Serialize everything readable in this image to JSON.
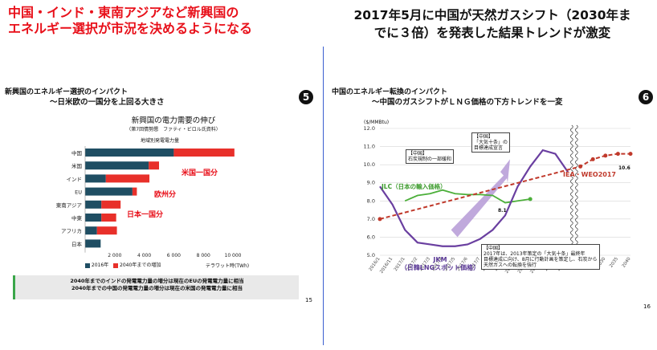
{
  "left": {
    "headline_line1": "中国・インド・東南アジアなど新興国の",
    "headline_line2": "エネルギー選択が市況を決めるようになる",
    "slide_title": "新興国のエネルギー選択のインパクト",
    "slide_subtitle": "～日米欧の一国分を上回る大きさ",
    "badge": "5",
    "chart_heading": "新興国の電力需要の伸び",
    "chart_source": "（第7回情勢懇　ファティ・ビロル氏資料）",
    "chart_axis_title": "地域別発電電力量",
    "annotations": [
      "米国一国分",
      "欧州分",
      "日本一国分"
    ],
    "unit_label": "テラワット時(TWh)",
    "legend": [
      "2016年",
      "2040年までの増加"
    ],
    "note_line1": "2040年までのインドの発電電力量の増分は現在のEUの発電電力量に相当",
    "note_line2": "2040年までの中国の発電電力量の増分は現在の米国の発電電力量に相当",
    "page_number": "15"
  },
  "right": {
    "headline_line1": "2017年5月に中国が天然ガスシフト（2030年ま",
    "headline_line2": "でに３倍）を発表した結果トレンドが激変",
    "slide_title": "中国のエネルギー転換のインパクト",
    "slide_subtitle": "～中国のガスシフトがＬＮＧ価格の下方トレンドを一変",
    "badge": "6",
    "unit_label": "($/MMBtu)",
    "callout_top_line1": "【中国】",
    "callout_top_line2": "「大気十条」の",
    "callout_top_line3": "目標達成宣言",
    "callout_coal_line1": "【中国】",
    "callout_coal_line2": "石炭規制の一部緩和",
    "callout_bottom_line1": "【中国】",
    "callout_bottom_line2": "2017年は、2013年策定の「大気十条」最終年",
    "callout_bottom_line3": "目標達成に向け、8月に行動計画を策定し、石炭から",
    "callout_bottom_line4": "天然ガスへの転換を強行",
    "label_jlc": "JLC（日本の輸入価格）",
    "label_jkm_line1": "JKM",
    "label_jkm_line2": "（日韓LNGスポット価格）",
    "label_iea": "IEA・WEO2017",
    "value_jlc_end": "8.1",
    "value_iea_end": "10.6",
    "page_number": "16"
  },
  "chart_data": [
    {
      "type": "bar",
      "stacked": true,
      "orientation": "horizontal",
      "categories": [
        "中国",
        "米国",
        "インド",
        "EU",
        "東南アジア",
        "中東",
        "アフリカ",
        "日本"
      ],
      "series": [
        {
          "name": "2016年",
          "color": "#1f4e63",
          "values": [
            6000,
            4300,
            1400,
            3200,
            1100,
            1100,
            800,
            1050
          ]
        },
        {
          "name": "2040年までの増加",
          "color": "#e8302a",
          "values": [
            4100,
            700,
            2950,
            300,
            1300,
            1000,
            1350,
            0
          ]
        }
      ],
      "x_ticks": [
        "2 000",
        "4 000",
        "6 000",
        "8 000",
        "10 000"
      ],
      "xlim": [
        0,
        10500
      ],
      "xlabel": "テラワット時(TWh)"
    },
    {
      "type": "line",
      "x": [
        "2016/1",
        "2016/11",
        "2017/1",
        "2017/2",
        "2017/3",
        "2017/4",
        "2017/5",
        "2017/6",
        "2017/7",
        "2017/8",
        "2017/9",
        "2017/10",
        "2017/11",
        "2017/12",
        "2018/1",
        "2018/2",
        "2020",
        "2025",
        "2030",
        "2035",
        "2040"
      ],
      "y_ticks": [
        "5.0",
        "6.0",
        "7.0",
        "8.0",
        "9.0",
        "10.0",
        "11.0",
        "12.0"
      ],
      "ylim": [
        5.0,
        12.0
      ],
      "ylabel": "($/MMBtu)",
      "series": [
        {
          "name": "JLC（日本の輸入価格）",
          "color": "#4caf3a",
          "values": [
            null,
            null,
            8.0,
            8.3,
            8.4,
            8.6,
            8.4,
            8.35,
            8.35,
            8.3,
            7.9,
            8.0,
            8.1,
            null,
            null,
            null,
            null,
            null,
            null,
            null,
            null
          ]
        },
        {
          "name": "JKM",
          "color": "#6a3fa0",
          "values": [
            8.8,
            7.8,
            6.4,
            5.7,
            5.6,
            5.5,
            5.5,
            5.6,
            5.9,
            6.4,
            7.2,
            8.8,
            9.9,
            10.8,
            10.6,
            9.6,
            null,
            null,
            null,
            null,
            null
          ]
        },
        {
          "name": "IEA・WEO2017",
          "color": "#c0392b",
          "values": [
            7.0,
            null,
            null,
            null,
            null,
            null,
            null,
            null,
            null,
            null,
            null,
            null,
            null,
            null,
            null,
            null,
            9.9,
            10.3,
            10.5,
            10.6,
            10.6
          ]
        }
      ]
    }
  ]
}
